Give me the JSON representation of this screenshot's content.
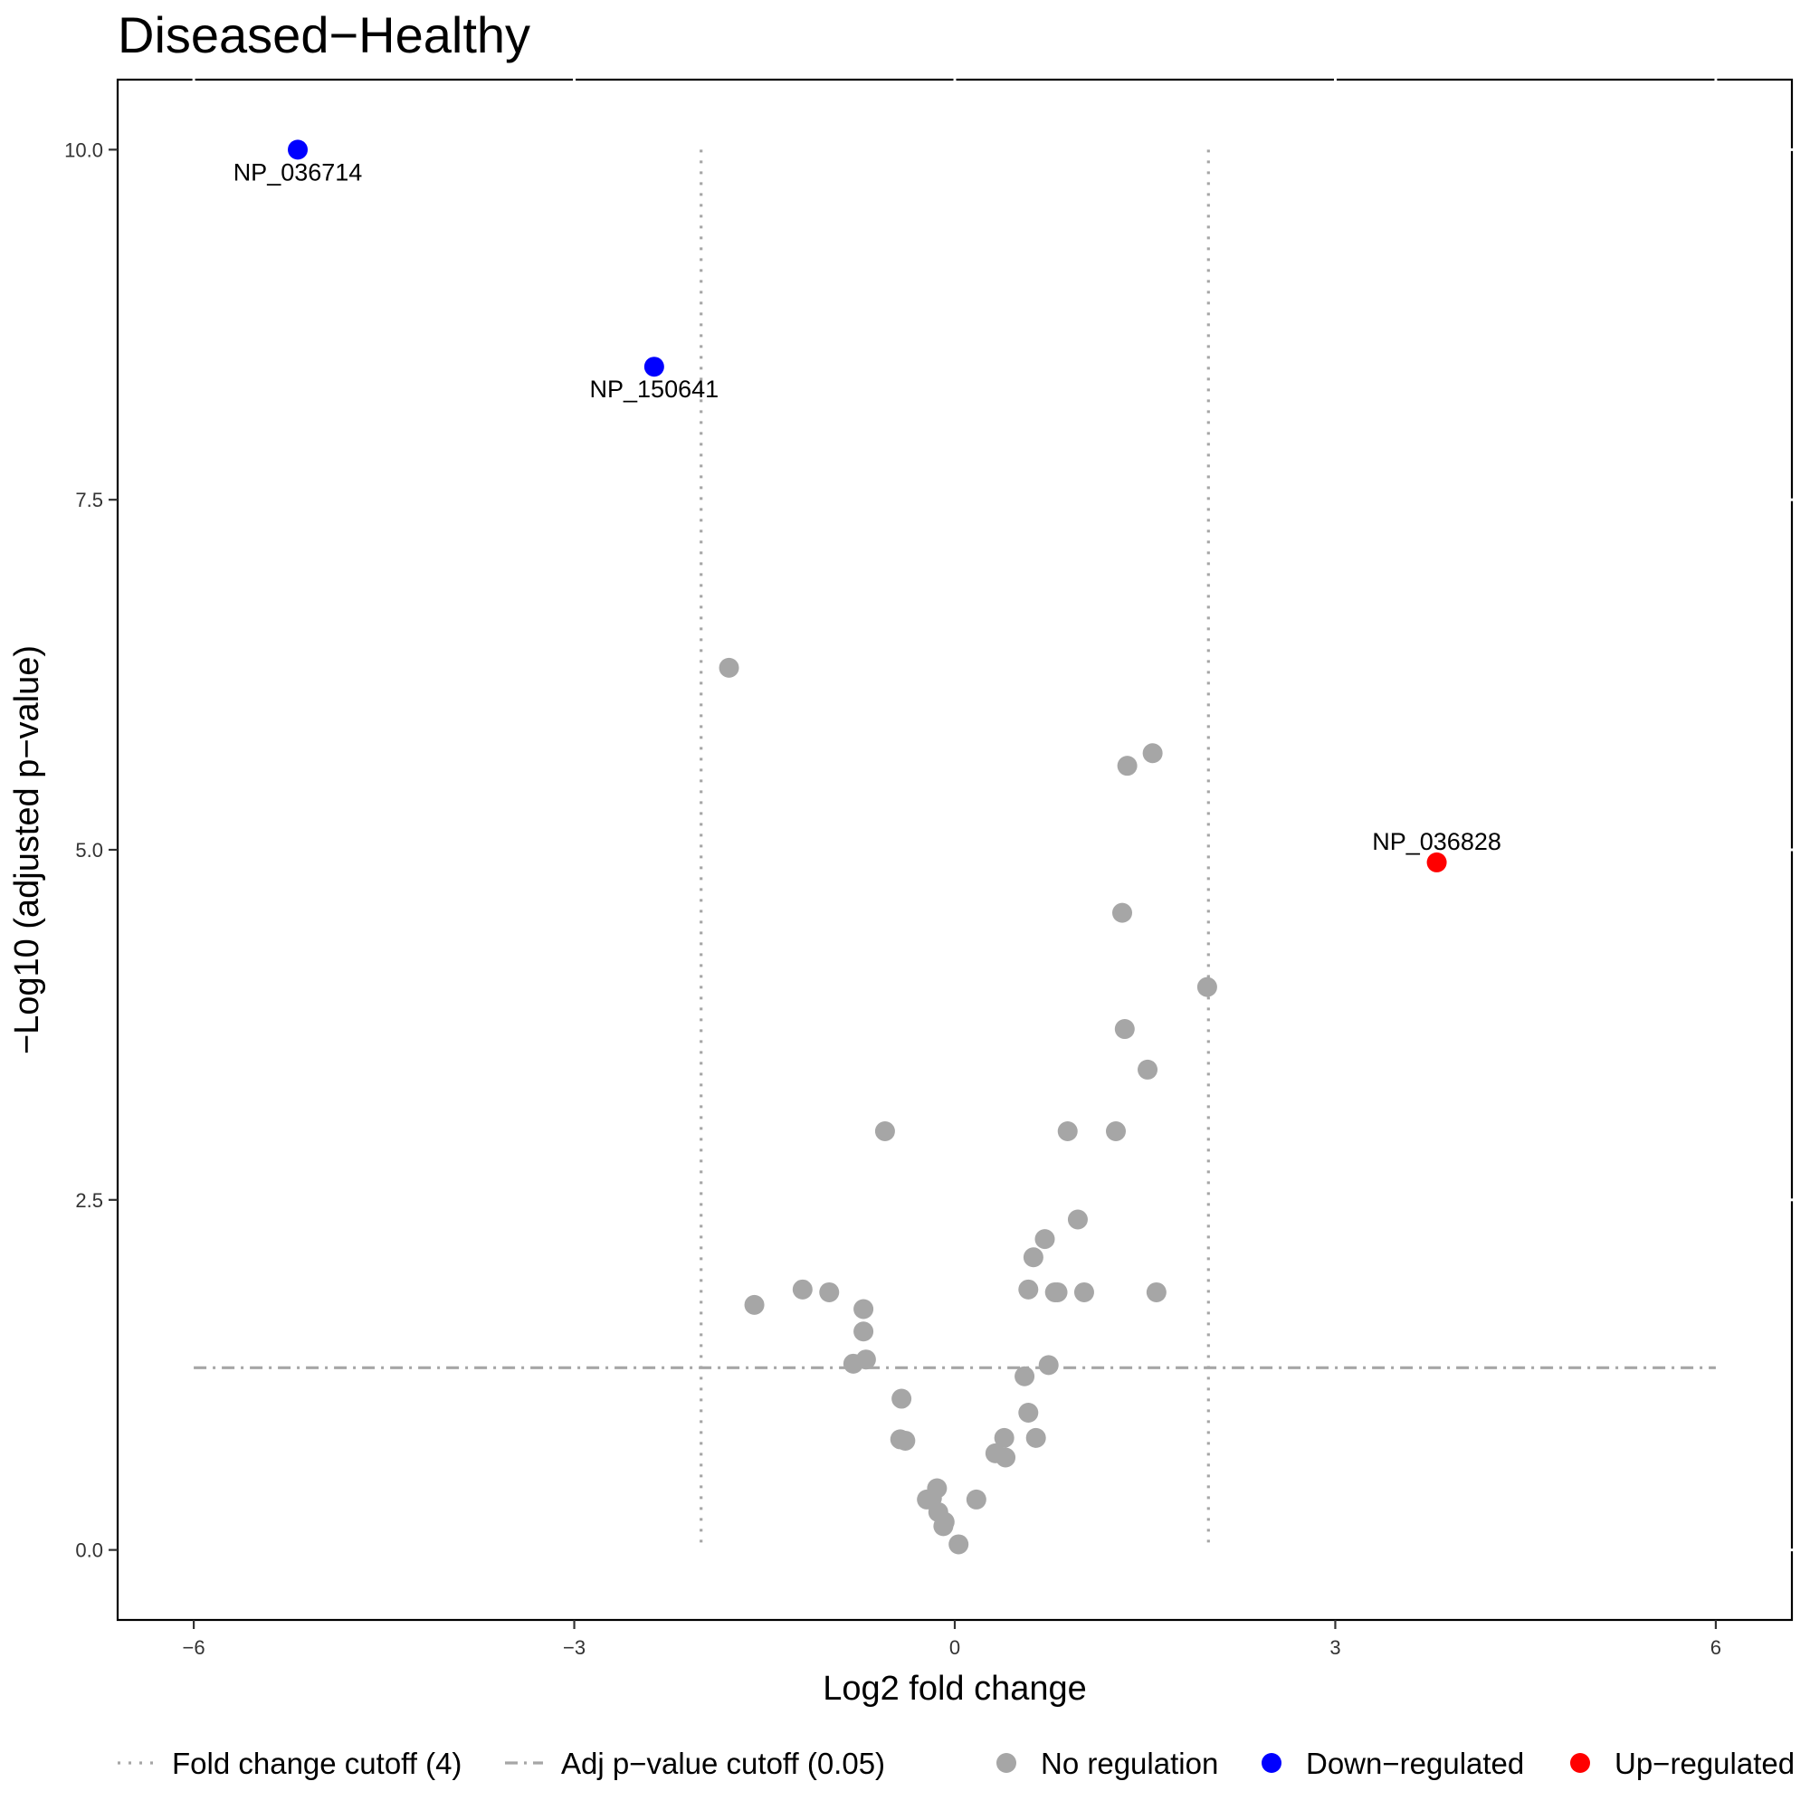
{
  "chart_data": {
    "type": "scatter",
    "title": "Diseased−Healthy",
    "xlabel": "Log2 fold change",
    "ylabel": "−Log10 (adjusted p−value)",
    "xlim": [
      -6.6,
      6.6
    ],
    "ylim": [
      -0.5,
      10.5
    ],
    "x_ticks": [
      -6,
      -3,
      0,
      3,
      6
    ],
    "x_tick_labels": [
      "−6",
      "−3",
      "0",
      "3",
      "6"
    ],
    "y_ticks": [
      0,
      2.5,
      5,
      7.5,
      10
    ],
    "y_tick_labels": [
      "0.0",
      "2.5",
      "5.0",
      "7.5",
      "10.0"
    ],
    "grid": false,
    "legend_position": "bottom",
    "fold_change_cutoffs": [
      -2,
      2
    ],
    "pvalue_cutoff": 1.301,
    "colors": {
      "No regulation": "#a6a6a6",
      "Down−regulated": "#0000ff",
      "Up−regulated": "#ff0000",
      "cutoff_line": "#a6a6a6"
    },
    "series": [
      {
        "name": "No regulation",
        "points": [
          [
            -1.78,
            6.3
          ],
          [
            1.36,
            5.6
          ],
          [
            1.56,
            5.69
          ],
          [
            1.32,
            4.55
          ],
          [
            1.99,
            4.02
          ],
          [
            1.34,
            3.72
          ],
          [
            1.52,
            3.43
          ],
          [
            -0.55,
            2.99
          ],
          [
            0.89,
            2.99
          ],
          [
            1.27,
            2.99
          ],
          [
            0.97,
            2.36
          ],
          [
            0.71,
            2.22
          ],
          [
            0.62,
            2.09
          ],
          [
            -1.58,
            1.75
          ],
          [
            -1.2,
            1.86
          ],
          [
            -0.99,
            1.84
          ],
          [
            -0.72,
            1.72
          ],
          [
            -0.72,
            1.56
          ],
          [
            0.58,
            1.86
          ],
          [
            0.79,
            1.84
          ],
          [
            0.81,
            1.84
          ],
          [
            1.02,
            1.84
          ],
          [
            1.59,
            1.84
          ],
          [
            -0.7,
            1.36
          ],
          [
            -0.8,
            1.33
          ],
          [
            0.74,
            1.32
          ],
          [
            0.55,
            1.24
          ],
          [
            -0.42,
            1.08
          ],
          [
            0.58,
            0.98
          ],
          [
            -0.43,
            0.79
          ],
          [
            -0.39,
            0.78
          ],
          [
            0.64,
            0.8
          ],
          [
            0.39,
            0.8
          ],
          [
            0.32,
            0.69
          ],
          [
            0.4,
            0.66
          ],
          [
            -0.14,
            0.44
          ],
          [
            -0.22,
            0.36
          ],
          [
            -0.18,
            0.37
          ],
          [
            0.17,
            0.36
          ],
          [
            -0.13,
            0.27
          ],
          [
            -0.09,
            0.17
          ],
          [
            -0.08,
            0.2
          ],
          [
            0.03,
            0.04
          ]
        ]
      },
      {
        "name": "Down−regulated",
        "points": [
          [
            -5.18,
            10.0
          ],
          [
            -2.37,
            8.45
          ]
        ],
        "labels": [
          "NP_036714",
          "NP_150641"
        ]
      },
      {
        "name": "Up−regulated",
        "points": [
          [
            3.8,
            4.91
          ]
        ],
        "labels": [
          "NP_036828"
        ]
      }
    ],
    "legend": {
      "lines": [
        "Fold change cutoff (4)",
        "Adj p−value cutoff (0.05)"
      ],
      "points": [
        "No regulation",
        "Down−regulated",
        "Up−regulated"
      ]
    }
  }
}
